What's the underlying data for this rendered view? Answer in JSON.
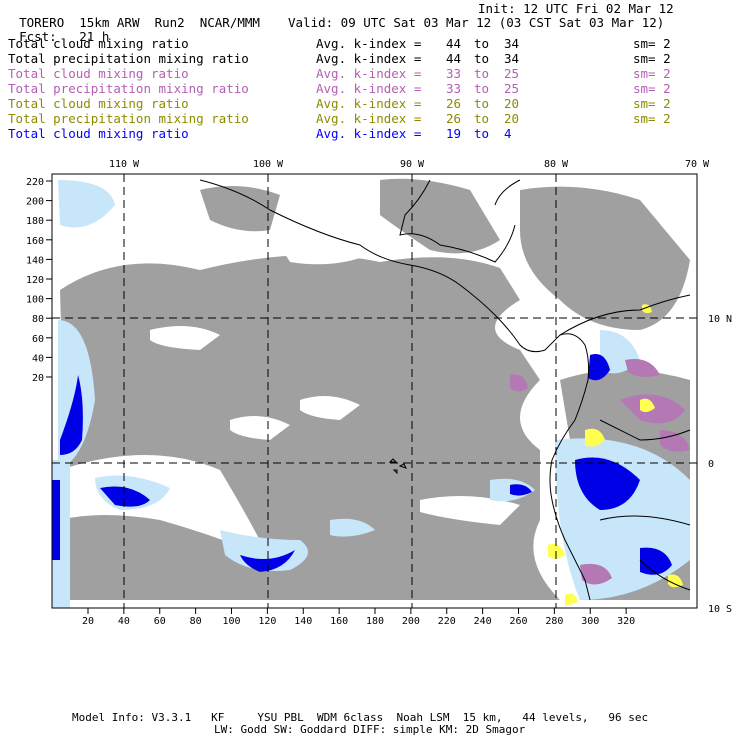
{
  "header": {
    "model": "TORERO",
    "resolution": "15km ARW",
    "run": "Run2",
    "org": "NCAR/MMM",
    "init": "Init: 12 UTC Fri 02 Mar 12",
    "fcst_label": "Fcst:",
    "fcst_value": "21 h",
    "valid": "Valid: 09 UTC Sat 03 Mar 12 (03 CST Sat 03 Mar 12)"
  },
  "legend": [
    {
      "field": "Total cloud mixing ratio",
      "kindex": "Avg. k-index =",
      "from": "44",
      "to_word": "to",
      "to": "34",
      "sm": "sm= 2",
      "color": "#000000"
    },
    {
      "field": "Total precipitation mixing ratio",
      "kindex": "Avg. k-index =",
      "from": "44",
      "to_word": "to",
      "to": "34",
      "sm": "sm= 2",
      "color": "#000000"
    },
    {
      "field": "Total cloud mixing ratio",
      "kindex": "Avg. k-index =",
      "from": "33",
      "to_word": "to",
      "to": "25",
      "sm": "sm= 2",
      "color": "#b45fb4"
    },
    {
      "field": "Total precipitation mixing ratio",
      "kindex": "Avg. k-index =",
      "from": "33",
      "to_word": "to",
      "to": "25",
      "sm": "sm= 2",
      "color": "#b45fb4"
    },
    {
      "field": "Total cloud mixing ratio",
      "kindex": "Avg. k-index =",
      "from": "26",
      "to_word": "to",
      "to": "20",
      "sm": "sm= 2",
      "color": "#8c8c00"
    },
    {
      "field": "Total precipitation mixing ratio",
      "kindex": "Avg. k-index =",
      "from": "26",
      "to_word": "to",
      "to": "20",
      "sm": "sm= 2",
      "color": "#8c8c00"
    },
    {
      "field": "Total cloud mixing ratio",
      "kindex": "Avg. k-index =",
      "from": "19",
      "to_word": "to",
      "to": "4",
      "sm": "",
      "color": "#0000ff"
    }
  ],
  "map": {
    "lon_labels": [
      "110 W",
      "100 W",
      "90 W",
      "80 W",
      "70 W"
    ],
    "lat_labels": [
      "10 N",
      "0",
      "10 S"
    ],
    "x_ticks": [
      "20",
      "40",
      "60",
      "80",
      "100",
      "120",
      "140",
      "160",
      "180",
      "200",
      "220",
      "240",
      "260",
      "280",
      "300",
      "320"
    ],
    "y_ticks": [
      "220",
      "200",
      "180",
      "160",
      "140",
      "120",
      "100",
      "80",
      "60",
      "40",
      "20"
    ],
    "colors": {
      "cloud": "#a0a0a0",
      "light_blue": "#c8e6fa",
      "blue": "#0000e6",
      "purple": "#b478b4",
      "yellow": "#ffff50",
      "coast": "#000000"
    }
  },
  "footer": {
    "line1": "Model Info: V3.3.1   KF     YSU PBL  WDM 6class  Noah LSM  15 km,   44 levels,   96 sec",
    "line2": "LW: Godd SW: Goddard DIFF: simple KM: 2D Smagor"
  }
}
